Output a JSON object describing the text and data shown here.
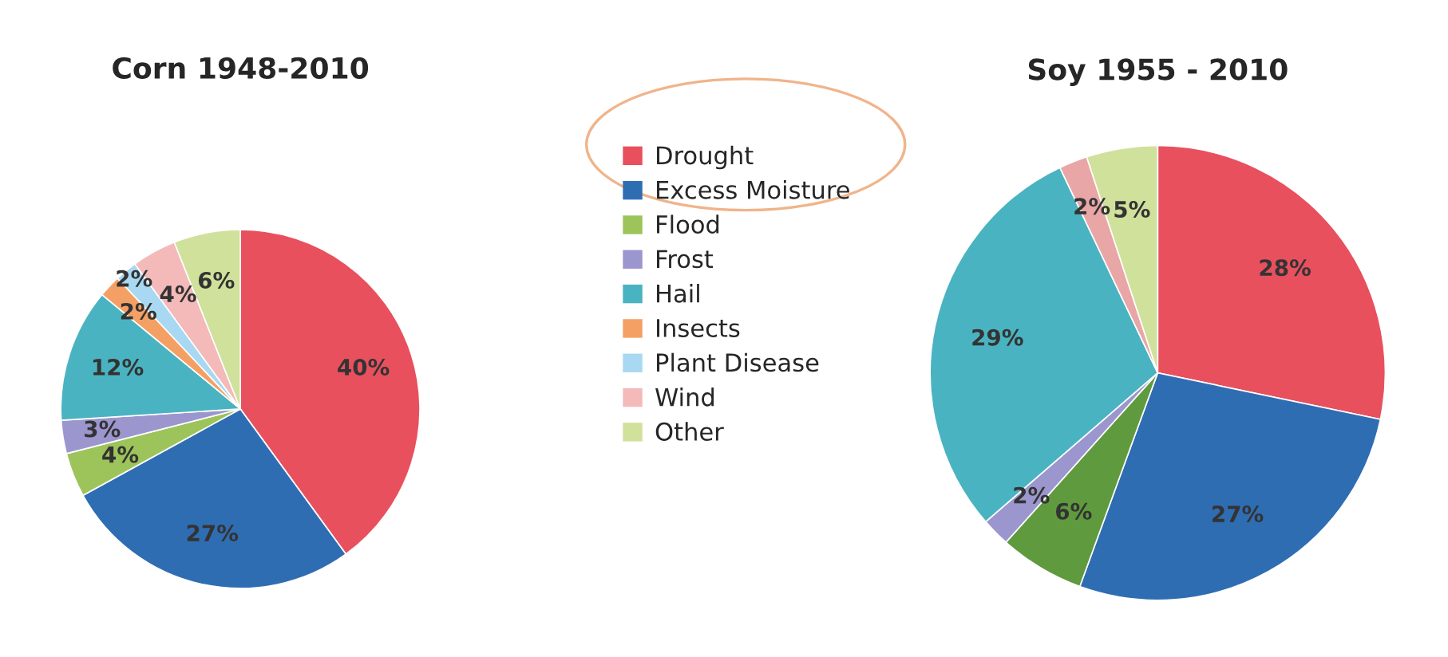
{
  "chart_data": [
    {
      "type": "pie",
      "title": "Corn 1948-2010",
      "legend": "right",
      "categories": [
        "Drought",
        "Excess Moisture",
        "Flood",
        "Frost",
        "Hail",
        "Insects",
        "Plant Disease",
        "Wind",
        "Other"
      ],
      "values": [
        40,
        27,
        4,
        3,
        12,
        2,
        2,
        4,
        6
      ],
      "value_labels": [
        "40%",
        "27%",
        "4%",
        "3%",
        "12%",
        "2%",
        "2%",
        "4%",
        "6%"
      ],
      "colors": [
        "#e8505e",
        "#2f6db3",
        "#9cc45a",
        "#9c96cf",
        "#4ab3c1",
        "#f4a064",
        "#a8d8f2",
        "#f4baba",
        "#cfe19b"
      ]
    },
    {
      "type": "pie",
      "title": "Soy 1955 - 2010",
      "categories": [
        null,
        null,
        null,
        null,
        null,
        null,
        null
      ],
      "values": [
        28,
        27,
        6,
        2,
        29,
        2,
        5
      ],
      "value_labels": [
        "28%",
        "27%",
        "6%",
        "2%",
        "29%",
        "2%",
        "5%"
      ],
      "colors": [
        "#e8505e",
        "#2f6db3",
        "#5f9a3e",
        "#9c96cf",
        "#4ab3c1",
        "#e9a6a6",
        "#cfe19b"
      ]
    }
  ]
}
